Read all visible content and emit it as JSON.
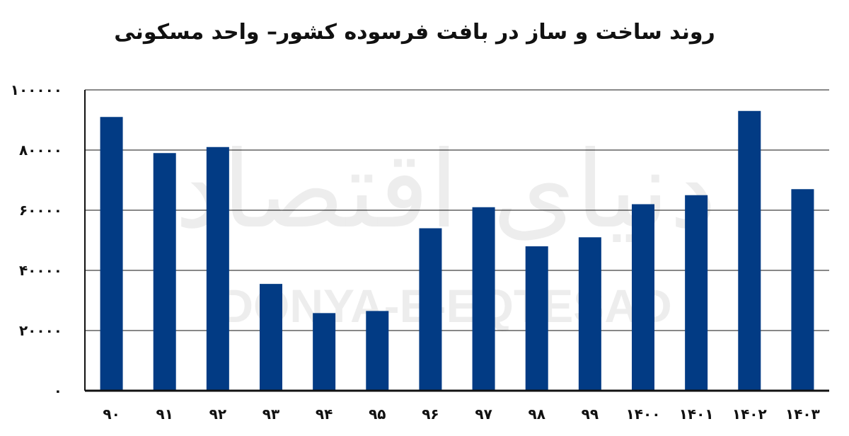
{
  "title": "روند ساخت و ساز در بافت فرسوده کشور– واحد مسکونی",
  "watermark": {
    "brand": "دنیای اقتصاد",
    "latin": "DONYA-E-EQTESAD"
  },
  "colors": {
    "bar": "#023b84",
    "axis": "#111111",
    "grid": "#111111"
  },
  "chart_data": {
    "type": "bar",
    "title": "روند ساخت و ساز در بافت فرسوده کشور– واحد مسکونی",
    "xlabel": "",
    "ylabel": "",
    "ylim": [
      0,
      100000
    ],
    "grid": true,
    "yticks": [
      0,
      20000,
      40000,
      60000,
      80000,
      100000
    ],
    "ytick_labels": [
      "۰",
      "۲۰۰۰۰",
      "۴۰۰۰۰",
      "۶۰۰۰۰",
      "۸۰۰۰۰",
      "۱۰۰۰۰۰"
    ],
    "categories": [
      "۹۰",
      "۹۱",
      "۹۲",
      "۹۳",
      "۹۴",
      "۹۵",
      "۹۶",
      "۹۷",
      "۹۸",
      "۹۹",
      "۱۴۰۰",
      "۱۴۰۱",
      "۱۴۰۲",
      "۱۴۰۳"
    ],
    "values": [
      91000,
      79000,
      81000,
      35500,
      25800,
      26500,
      54000,
      61000,
      48000,
      51000,
      62000,
      65000,
      93000,
      67000
    ]
  }
}
